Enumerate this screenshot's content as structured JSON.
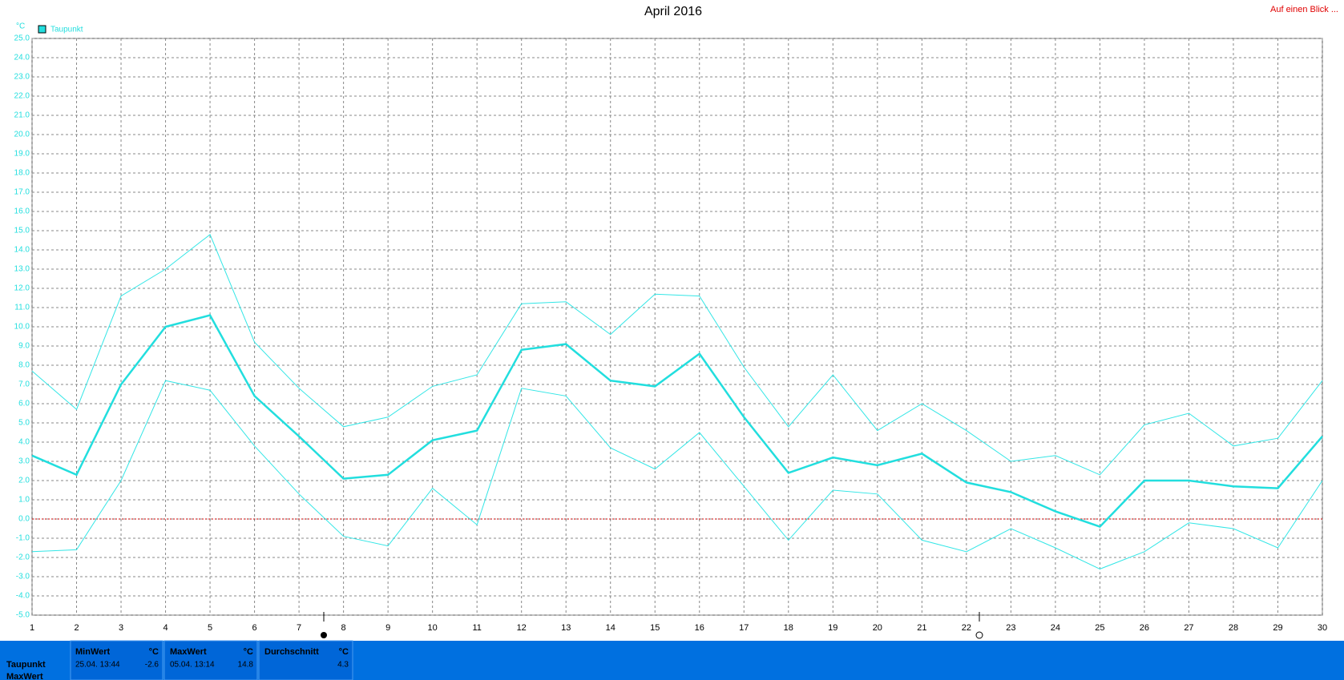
{
  "chart_data": {
    "type": "line",
    "title": "April 2016",
    "y_unit": "°C",
    "link": "Auf einen Blick ...",
    "x": [
      1,
      2,
      3,
      4,
      5,
      6,
      7,
      8,
      9,
      10,
      11,
      12,
      13,
      14,
      15,
      16,
      17,
      18,
      19,
      20,
      21,
      22,
      23,
      24,
      25,
      26,
      27,
      28,
      29,
      30
    ],
    "xlim": [
      1,
      30
    ],
    "xticks": [
      1,
      2,
      3,
      4,
      5,
      6,
      7,
      8,
      9,
      10,
      11,
      12,
      13,
      14,
      15,
      16,
      17,
      18,
      19,
      20,
      21,
      22,
      23,
      24,
      25,
      26,
      27,
      28,
      29,
      30
    ],
    "ylim": [
      -5,
      25
    ],
    "yticks": [
      {
        "value": -5,
        "label": "-5.0"
      },
      {
        "value": -4,
        "label": "-4.0"
      },
      {
        "value": -3,
        "label": "-3.0"
      },
      {
        "value": -2,
        "label": "-2.0"
      },
      {
        "value": -1,
        "label": "-1.0"
      },
      {
        "value": 0,
        "label": "0.0"
      },
      {
        "value": 1,
        "label": "1.0"
      },
      {
        "value": 2,
        "label": "2.0"
      },
      {
        "value": 3,
        "label": "3.0"
      },
      {
        "value": 4,
        "label": "4.0"
      },
      {
        "value": 5,
        "label": "5.0"
      },
      {
        "value": 6,
        "label": "6.0"
      },
      {
        "value": 7,
        "label": "7.0"
      },
      {
        "value": 8,
        "label": "8.0"
      },
      {
        "value": 9,
        "label": "9.0"
      },
      {
        "value": 10,
        "label": "10.0"
      },
      {
        "value": 11,
        "label": "11.0"
      },
      {
        "value": 12,
        "label": "12.0"
      },
      {
        "value": 13,
        "label": "13.0"
      },
      {
        "value": 14,
        "label": "14.0"
      },
      {
        "value": 15,
        "label": "15.0"
      },
      {
        "value": 16,
        "label": "16.0"
      },
      {
        "value": 17,
        "label": "17.0"
      },
      {
        "value": 18,
        "label": "18.0"
      },
      {
        "value": 19,
        "label": "19.0"
      },
      {
        "value": 20,
        "label": "20.0"
      },
      {
        "value": 21,
        "label": "21.0"
      },
      {
        "value": 22,
        "label": "22.0"
      },
      {
        "value": 23,
        "label": "23.0"
      },
      {
        "value": 24,
        "label": "24.0"
      },
      {
        "value": 25,
        "label": "25.0"
      }
    ],
    "grid": true,
    "ref_line": {
      "value": 0,
      "color": "#cc0000"
    },
    "legend": "top-left",
    "series": [
      {
        "color": "#33e6e6",
        "line_width": 1,
        "values": [
          7.7,
          5.7,
          11.6,
          13.0,
          14.8,
          9.2,
          6.8,
          4.8,
          5.3,
          6.9,
          7.5,
          11.2,
          11.3,
          9.6,
          11.7,
          11.6,
          7.9,
          4.8,
          7.5,
          4.6,
          6.0,
          4.6,
          3.0,
          3.3,
          2.3,
          4.9,
          5.5,
          3.8,
          4.2,
          7.2
        ]
      },
      {
        "name": "Taupunkt",
        "color": "#22dede",
        "line_width": 2.5,
        "values": [
          3.3,
          2.3,
          7.0,
          10.0,
          10.6,
          6.4,
          4.3,
          2.1,
          2.3,
          4.1,
          4.6,
          8.8,
          9.1,
          7.2,
          6.9,
          8.6,
          5.3,
          2.4,
          3.2,
          2.8,
          3.4,
          1.9,
          1.4,
          0.4,
          -0.4,
          2.0,
          2.0,
          1.7,
          1.6,
          4.3
        ]
      },
      {
        "color": "#33e6e6",
        "line_width": 1,
        "values": [
          -1.7,
          -1.6,
          2.0,
          7.2,
          6.7,
          3.8,
          1.3,
          -0.9,
          -1.4,
          1.6,
          -0.3,
          6.8,
          6.4,
          3.7,
          2.6,
          4.5,
          1.7,
          -1.1,
          1.5,
          1.3,
          -1.1,
          -1.7,
          -0.5,
          -1.5,
          -2.6,
          -1.7,
          -0.2,
          -0.5,
          -1.5,
          2.0
        ]
      }
    ]
  },
  "summary": {
    "headers": [
      [
        "MinWert",
        "°C"
      ],
      [
        "MaxWert",
        "°C"
      ],
      [
        "Durchschnitt",
        "°C"
      ]
    ],
    "row_label": "Taupunkt",
    "min_time": "25.04. 13:44",
    "min_value": -2.6,
    "max_time": "05.04. 13:14",
    "max_value": 14.8,
    "average": 4.3,
    "next_row_label": "MaxWert"
  }
}
